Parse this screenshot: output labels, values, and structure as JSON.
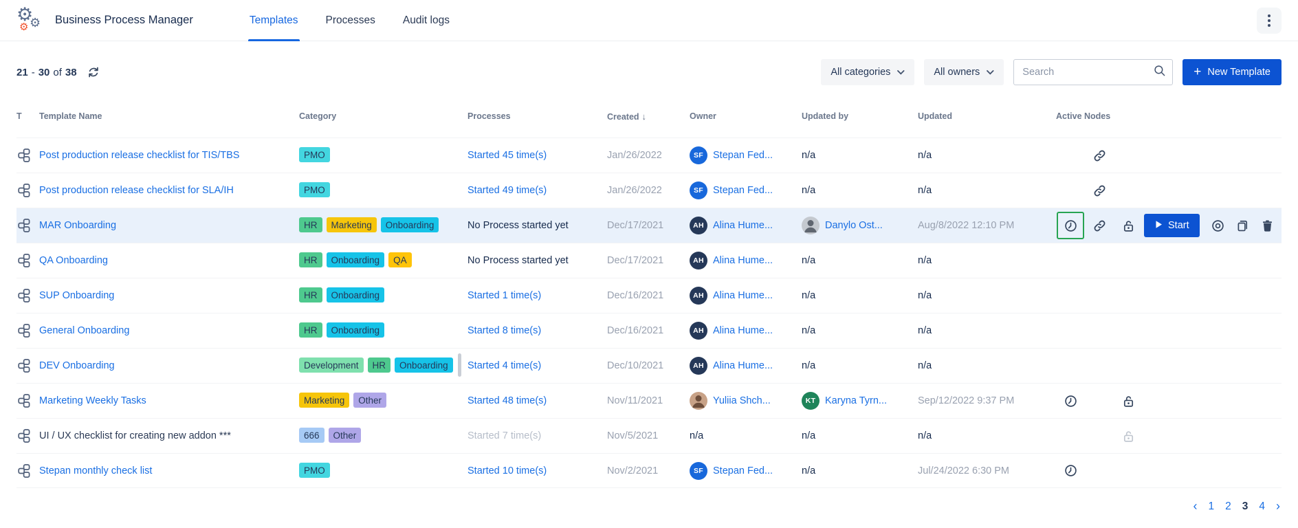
{
  "app": {
    "title": "Business Process Manager",
    "tabs": [
      {
        "label": "Templates",
        "active": true
      },
      {
        "label": "Processes",
        "active": false
      },
      {
        "label": "Audit logs",
        "active": false
      }
    ]
  },
  "toolbar": {
    "results_range": {
      "from": "21",
      "dash": "-",
      "to": "30",
      "of_word": "of",
      "total": "38"
    },
    "category_filter": "All categories",
    "owner_filter": "All owners",
    "search_placeholder": "Search",
    "new_template": {
      "plus": "+",
      "label": "New Template"
    }
  },
  "table": {
    "columns": [
      "T",
      "Template Name",
      "Category",
      "Processes",
      "Created",
      "Owner",
      "Updated by",
      "Updated",
      "Active Nodes"
    ],
    "sort_arrow": "↓",
    "rows": [
      {
        "name": "Post production release checklist for TIS/TBS",
        "name_is_link": true,
        "tags": [
          {
            "label": "PMO",
            "bg": "#43D6E0"
          }
        ],
        "processes": {
          "text": "Started 45 time(s)",
          "style": "link"
        },
        "created": "Jan/26/2022",
        "owner": {
          "avatar": {
            "type": "initials",
            "text": "SF",
            "bg": "#1868DB"
          },
          "name": "Stepan Fed..."
        },
        "updated_by": {
          "text": "n/a"
        },
        "updated": "n/a",
        "highlight": false,
        "node_icons": {
          "clock": false,
          "clock_boxed": false,
          "link": true,
          "lock": null
        },
        "actions": null
      },
      {
        "name": "Post production release checklist for SLA/IH",
        "name_is_link": true,
        "tags": [
          {
            "label": "PMO",
            "bg": "#43D6E0"
          }
        ],
        "processes": {
          "text": "Started 49 time(s)",
          "style": "link"
        },
        "created": "Jan/26/2022",
        "owner": {
          "avatar": {
            "type": "initials",
            "text": "SF",
            "bg": "#1868DB"
          },
          "name": "Stepan Fed..."
        },
        "updated_by": {
          "text": "n/a"
        },
        "updated": "n/a",
        "highlight": false,
        "node_icons": {
          "clock": false,
          "clock_boxed": false,
          "link": true,
          "lock": null
        },
        "actions": null
      },
      {
        "name": "MAR Onboarding",
        "name_is_link": true,
        "tags": [
          {
            "label": "HR",
            "bg": "#4EC98E"
          },
          {
            "label": "Marketing",
            "bg": "#F6C50B"
          },
          {
            "label": "Onboarding",
            "bg": "#16C3E8"
          }
        ],
        "processes": {
          "text": "No Process started yet",
          "style": "plain"
        },
        "created": "Dec/17/2021",
        "owner": {
          "avatar": {
            "type": "initials",
            "text": "AH",
            "bg": "#253858"
          },
          "name": "Alina Hume..."
        },
        "updated_by": {
          "avatar": {
            "type": "photo",
            "bg": "#C4C9CF",
            "fg": "#5F6670"
          },
          "name": "Danylo Ost..."
        },
        "updated": "Aug/8/2022 12:10 PM",
        "highlight": true,
        "node_icons": {
          "clock": true,
          "clock_boxed": true,
          "link": true,
          "lock": "dark"
        },
        "actions": {
          "start_label": "Start",
          "watch": true,
          "copy": true,
          "trash": true
        }
      },
      {
        "name": "QA Onboarding",
        "name_is_link": true,
        "tags": [
          {
            "label": "HR",
            "bg": "#4EC98E"
          },
          {
            "label": "Onboarding",
            "bg": "#16C3E8"
          },
          {
            "label": "QA",
            "bg": "#FFC40A"
          }
        ],
        "processes": {
          "text": "No Process started yet",
          "style": "plain"
        },
        "created": "Dec/17/2021",
        "owner": {
          "avatar": {
            "type": "initials",
            "text": "AH",
            "bg": "#253858"
          },
          "name": "Alina Hume..."
        },
        "updated_by": {
          "text": "n/a"
        },
        "updated": "n/a",
        "highlight": false,
        "node_icons": {
          "clock": false,
          "clock_boxed": false,
          "link": false,
          "lock": null
        },
        "actions": null
      },
      {
        "name": "SUP Onboarding",
        "name_is_link": true,
        "tags": [
          {
            "label": "HR",
            "bg": "#4EC98E"
          },
          {
            "label": "Onboarding",
            "bg": "#16C3E8"
          }
        ],
        "processes": {
          "text": "Started 1 time(s)",
          "style": "link"
        },
        "created": "Dec/16/2021",
        "owner": {
          "avatar": {
            "type": "initials",
            "text": "AH",
            "bg": "#253858"
          },
          "name": "Alina Hume..."
        },
        "updated_by": {
          "text": "n/a"
        },
        "updated": "n/a",
        "highlight": false,
        "node_icons": {
          "clock": false,
          "clock_boxed": false,
          "link": false,
          "lock": null
        },
        "actions": null
      },
      {
        "name": "General Onboarding",
        "name_is_link": true,
        "tags": [
          {
            "label": "HR",
            "bg": "#4EC98E"
          },
          {
            "label": "Onboarding",
            "bg": "#16C3E8"
          }
        ],
        "processes": {
          "text": "Started 8 time(s)",
          "style": "link"
        },
        "created": "Dec/16/2021",
        "owner": {
          "avatar": {
            "type": "initials",
            "text": "AH",
            "bg": "#253858"
          },
          "name": "Alina Hume..."
        },
        "updated_by": {
          "text": "n/a"
        },
        "updated": "n/a",
        "highlight": false,
        "node_icons": {
          "clock": false,
          "clock_boxed": false,
          "link": false,
          "lock": null
        },
        "actions": null
      },
      {
        "name": "DEV Onboarding",
        "name_is_link": true,
        "tags": [
          {
            "label": "Development",
            "bg": "#7FE0AE"
          },
          {
            "label": "HR",
            "bg": "#4EC98E"
          },
          {
            "label": "Onboarding",
            "bg": "#16C3E8"
          }
        ],
        "processes": {
          "text": "Started 4 time(s)",
          "style": "link"
        },
        "created": "Dec/10/2021",
        "owner": {
          "avatar": {
            "type": "initials",
            "text": "AH",
            "bg": "#253858"
          },
          "name": "Alina Hume..."
        },
        "updated_by": {
          "text": "n/a"
        },
        "updated": "n/a",
        "highlight": false,
        "node_icons": {
          "clock": false,
          "clock_boxed": false,
          "link": false,
          "lock": null
        },
        "actions": null
      },
      {
        "name": "Marketing Weekly Tasks",
        "name_is_link": true,
        "tags": [
          {
            "label": "Marketing",
            "bg": "#F6C50B"
          },
          {
            "label": "Other",
            "bg": "#AFA6E8"
          }
        ],
        "processes": {
          "text": "Started 48 time(s)",
          "style": "link"
        },
        "created": "Nov/11/2021",
        "owner": {
          "avatar": {
            "type": "photo",
            "bg": "#C8A287",
            "fg": "#6E4F3C"
          },
          "name": "Yuliia Shch..."
        },
        "updated_by": {
          "avatar": {
            "type": "initials",
            "text": "KT",
            "bg": "#1F845A"
          },
          "name": "Karyna Tyrn..."
        },
        "updated": "Sep/12/2022 9:37 PM",
        "highlight": false,
        "node_icons": {
          "clock": true,
          "clock_boxed": false,
          "link": false,
          "lock": "dark"
        },
        "actions": null
      },
      {
        "name": "UI / UX checklist for creating new addon ***",
        "name_is_link": false,
        "tags": [
          {
            "label": "666",
            "bg": "#A6CAF5"
          },
          {
            "label": "Other",
            "bg": "#AFA6E8"
          }
        ],
        "processes": {
          "text": "Started 7 time(s)",
          "style": "muted"
        },
        "created": "Nov/5/2021",
        "owner": {
          "text": "n/a"
        },
        "updated_by": {
          "text": "n/a"
        },
        "updated": "n/a",
        "highlight": false,
        "node_icons": {
          "clock": false,
          "clock_boxed": false,
          "link": false,
          "lock": "gray"
        },
        "actions": null
      },
      {
        "name": "Stepan monthly check list",
        "name_is_link": true,
        "tags": [
          {
            "label": "PMO",
            "bg": "#43D6E0"
          }
        ],
        "processes": {
          "text": "Started 10 time(s)",
          "style": "link"
        },
        "created": "Nov/2/2021",
        "owner": {
          "avatar": {
            "type": "initials",
            "text": "SF",
            "bg": "#1868DB"
          },
          "name": "Stepan Fed..."
        },
        "updated_by": {
          "text": "n/a"
        },
        "updated": "Jul/24/2022 6:30 PM",
        "highlight": false,
        "node_icons": {
          "clock": true,
          "clock_boxed": false,
          "link": false,
          "lock": null
        },
        "actions": null
      }
    ]
  },
  "pagination": {
    "prev": "‹",
    "pages": [
      "1",
      "2",
      "3",
      "4"
    ],
    "current": "3",
    "next": "›"
  },
  "colors": {
    "primary_button": "#0C53D2",
    "link": "#1A6FE3",
    "active_tab": "#1667E0",
    "row_highlight": "#E9F1FB",
    "green_outline": "#27A452",
    "icon_dark": "#36465F",
    "header_text": "#6B778C",
    "date_text": "#99A1B0"
  },
  "icons": {
    "app-logo": "gears",
    "refresh": "sync-arrows",
    "chevron-down": "v",
    "search": "magnifier",
    "plus": "+",
    "kebab-menu": "vertical-dots",
    "sort-desc": "↓",
    "template": "workflow-links",
    "clock": "clock-face",
    "active-link": "chain-link",
    "unlock": "open-padlock",
    "play": "triangle-right",
    "watch": "concentric-circles",
    "copy": "two-sheets",
    "trash": "trash-can",
    "prev": "‹",
    "next": "›"
  }
}
